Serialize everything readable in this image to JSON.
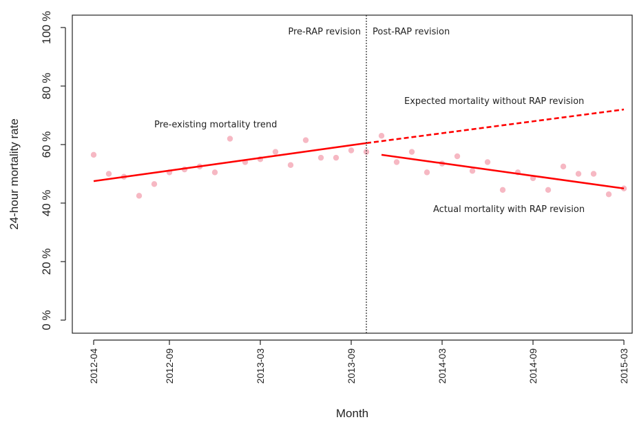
{
  "chart_data": {
    "type": "scatter",
    "xlabel": "Month",
    "ylabel": "24-hour mortality rate",
    "ylim": [
      0,
      100
    ],
    "y_ticks": [
      {
        "value": 0,
        "label": "0 %"
      },
      {
        "value": 20,
        "label": "20 %"
      },
      {
        "value": 40,
        "label": "40 %"
      },
      {
        "value": 60,
        "label": "60 %"
      },
      {
        "value": 80,
        "label": "80 %"
      },
      {
        "value": 100,
        "label": "100 %"
      }
    ],
    "x_ticks": [
      "2012-04",
      "2012-09",
      "2013-03",
      "2013-09",
      "2014-03",
      "2014-09",
      "2015-03"
    ],
    "months": [
      "2012-04",
      "2012-05",
      "2012-06",
      "2012-07",
      "2012-08",
      "2012-09",
      "2012-10",
      "2012-11",
      "2012-12",
      "2013-01",
      "2013-02",
      "2013-03",
      "2013-04",
      "2013-05",
      "2013-06",
      "2013-07",
      "2013-08",
      "2013-09",
      "2013-10",
      "2013-11",
      "2013-12",
      "2014-01",
      "2014-02",
      "2014-03",
      "2014-04",
      "2014-05",
      "2014-06",
      "2014-07",
      "2014-08",
      "2014-09",
      "2014-10",
      "2014-11",
      "2014-12",
      "2015-01",
      "2015-02",
      "2015-03"
    ],
    "monthly_mortality": [
      56.5,
      50,
      49,
      42.5,
      46.5,
      50.5,
      51.5,
      52.5,
      50.5,
      62,
      54,
      55,
      57.5,
      53,
      61.5,
      55.5,
      55.5,
      58,
      57.5,
      63,
      54,
      57.5,
      50.5,
      53.5,
      56,
      51,
      54,
      44.5,
      50.5,
      48.5,
      44.5,
      52.5,
      50,
      50,
      43,
      45
    ],
    "series": [
      {
        "name": "Pre-existing mortality trend",
        "style": "solid",
        "from": {
          "x": "2012-04",
          "y": 47.5
        },
        "to": {
          "x": "2013-10",
          "y": 60.5
        }
      },
      {
        "name": "Expected mortality without RAP revision",
        "style": "dashed",
        "from": {
          "x": "2013-10",
          "y": 60.5
        },
        "to": {
          "x": "2015-03",
          "y": 72
        }
      },
      {
        "name": "Actual mortality with RAP revision",
        "style": "solid",
        "from": {
          "x": "2013-11",
          "y": 56.5
        },
        "to": {
          "x": "2015-03",
          "y": 45
        }
      }
    ],
    "intervention": {
      "x": "2013-10",
      "style": "dotted"
    },
    "annotations": {
      "pre_rap": "Pre-RAP revision",
      "post_rap": "Post-RAP revision",
      "pre_trend": "Pre-existing mortality trend",
      "expected": "Expected mortality without RAP revision",
      "actual": "Actual mortality with RAP revision"
    },
    "colors": {
      "points": "#f6b8c3",
      "trend": "#ff0000",
      "axis": "#222222"
    }
  }
}
